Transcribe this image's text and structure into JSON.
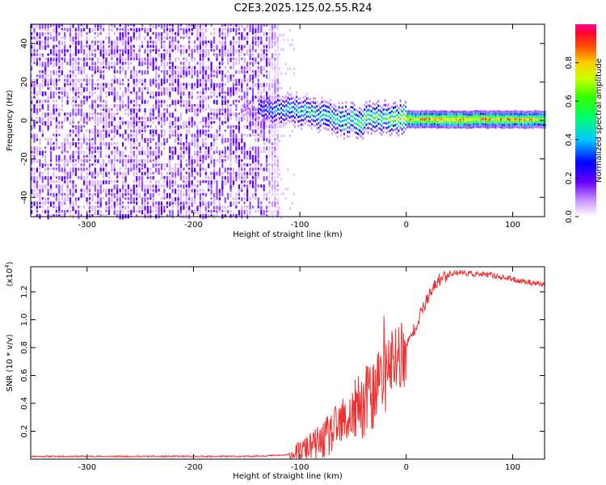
{
  "title": "C2E3.2025.125.02.55.R24",
  "chart_data": [
    {
      "type": "heatmap",
      "xlabel": "Height of straight line (km)",
      "ylabel": "Frequency (Hz)",
      "xlim": [
        -353,
        130
      ],
      "ylim": [
        -50,
        50
      ],
      "xticks": [
        -300,
        -200,
        -100,
        0,
        100
      ],
      "yticks": [
        -40,
        -20,
        0,
        20,
        40
      ],
      "xtick_labels": [
        "-300",
        "-200",
        "-100",
        "0",
        "100"
      ],
      "ytick_labels": [
        "-40",
        "-20",
        "0",
        "20",
        "40"
      ],
      "colorbar": {
        "label": "Normalized spectral amplitude",
        "range": [
          0,
          1
        ],
        "ticks": [
          0.0,
          0.2,
          0.4,
          0.6,
          0.8
        ],
        "tick_labels": [
          "0.0",
          "0.2",
          "0.4",
          "0.6",
          "0.8"
        ]
      },
      "ridge": {
        "x": [
          -140,
          -120,
          -100,
          -80,
          -60,
          -40,
          -20,
          0,
          50,
          100,
          130
        ],
        "freq": [
          6,
          6,
          5,
          3,
          0,
          0,
          2,
          0.5,
          0.5,
          0.5,
          0.5
        ],
        "amplitude": [
          0.3,
          0.45,
          0.5,
          0.5,
          0.55,
          0.65,
          0.6,
          0.85,
          0.9,
          0.85,
          0.8
        ]
      },
      "noise_region": [
        -353,
        -130
      ]
    },
    {
      "type": "line",
      "xlabel": "Height of straight line (km)",
      "ylabel": "SNR (10 * v/v)",
      "multiplier_base": "(x10",
      "multiplier_exp": "4",
      "multiplier_end": ")",
      "xlim": [
        -353,
        130
      ],
      "ylim": [
        0,
        1.38
      ],
      "xticks": [
        -300,
        -200,
        -100,
        0,
        100
      ],
      "yticks": [
        0.2,
        0.4,
        0.6,
        0.8,
        1.0,
        1.2
      ],
      "xtick_labels": [
        "-300",
        "-200",
        "-100",
        "0",
        "100"
      ],
      "ytick_labels": [
        "0.2",
        "0.4",
        "0.6",
        "0.8",
        "1.0",
        "1.2"
      ],
      "color": "#ee3030",
      "series": [
        {
          "x": [
            -353,
            -300,
            -200,
            -150,
            -110,
            -100,
            -80,
            -60,
            -50,
            -40,
            -30,
            -20,
            -10,
            0,
            10,
            20,
            30,
            40,
            50,
            60,
            80,
            100,
            130
          ],
          "y": [
            0.02,
            0.02,
            0.02,
            0.02,
            0.03,
            0.06,
            0.12,
            0.25,
            0.32,
            0.4,
            0.48,
            0.6,
            0.72,
            0.8,
            0.98,
            1.15,
            1.28,
            1.33,
            1.34,
            1.33,
            1.32,
            1.29,
            1.25
          ]
        }
      ]
    }
  ]
}
